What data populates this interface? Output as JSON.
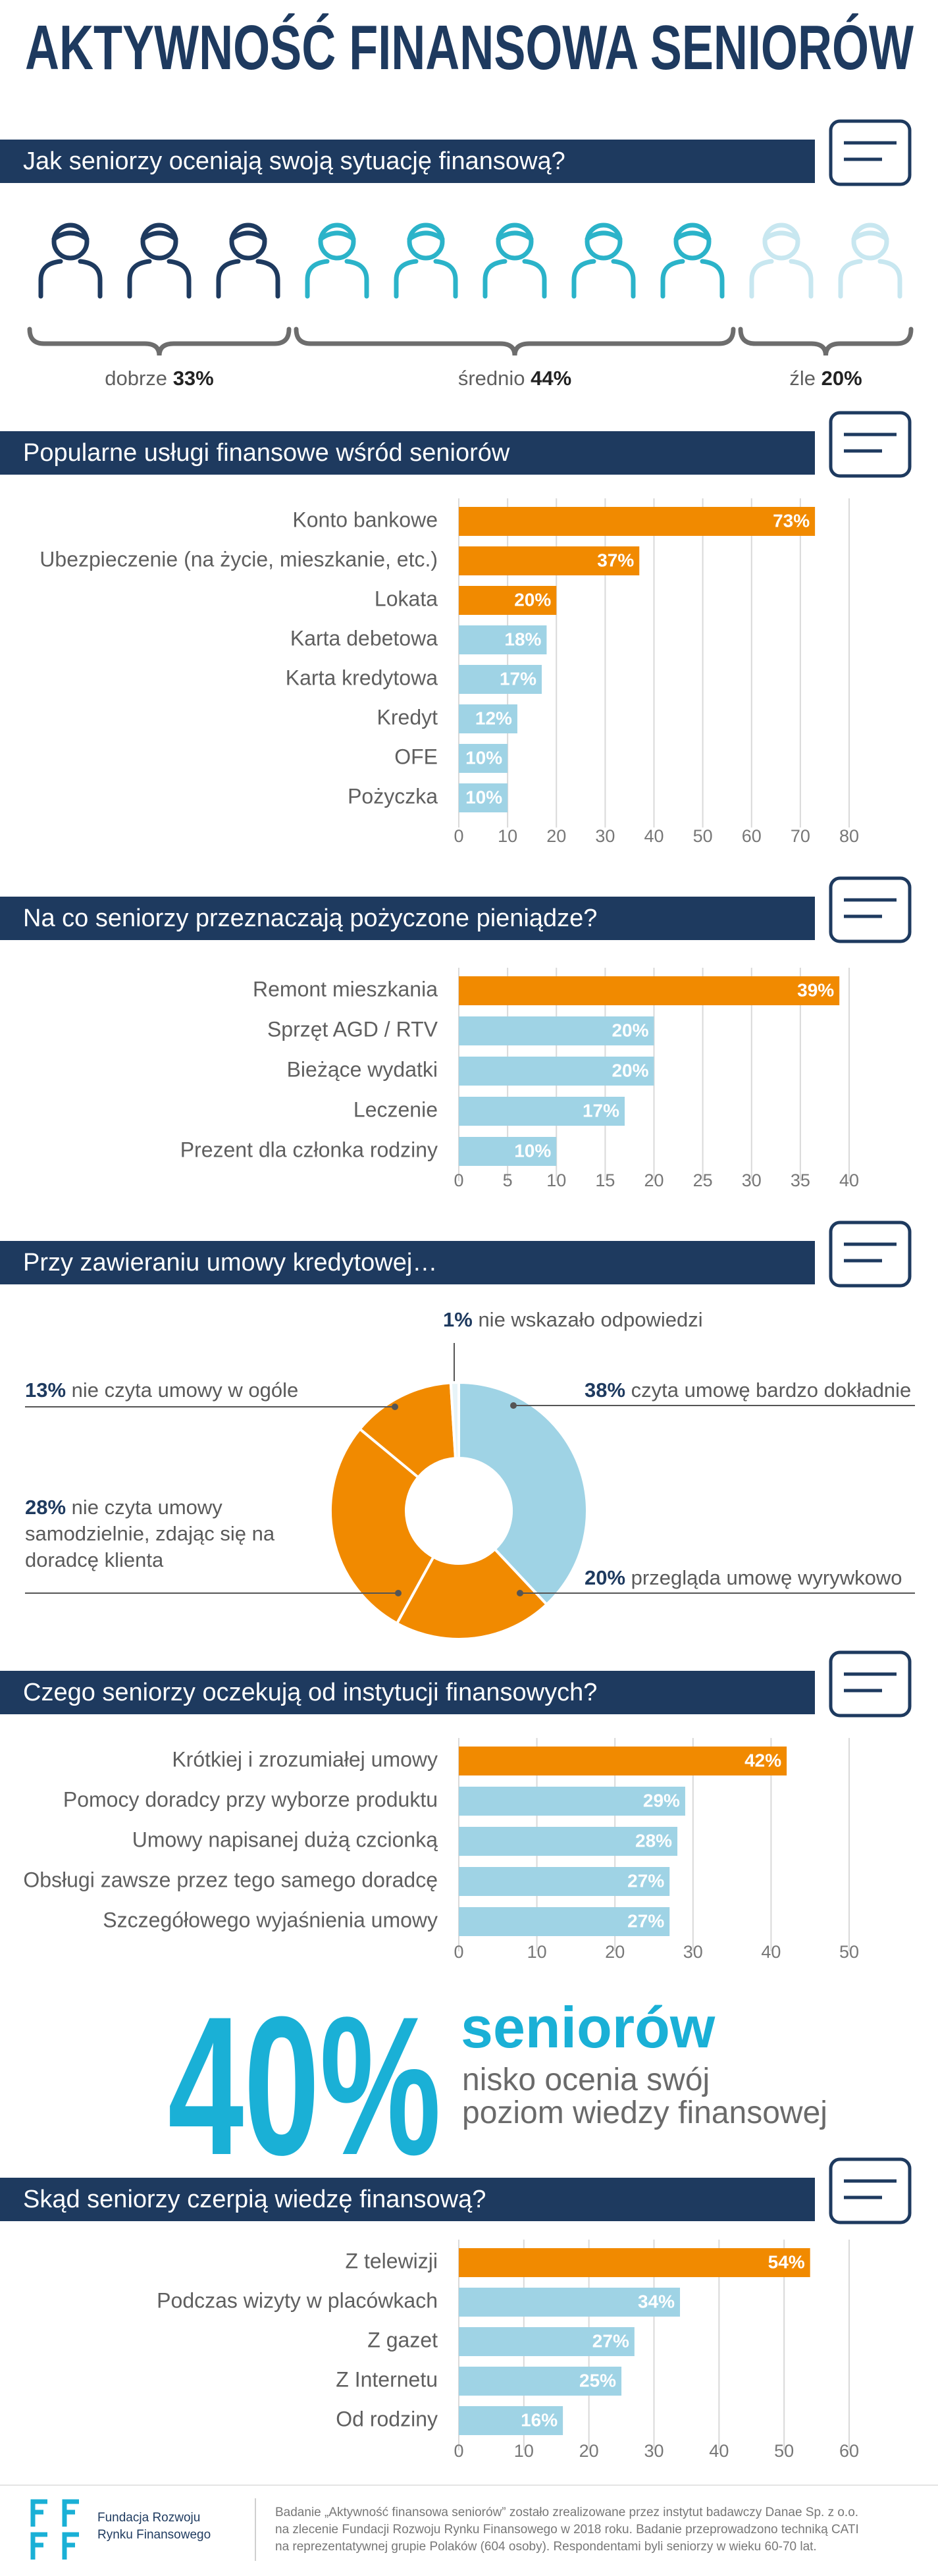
{
  "title": "AKTYWNOŚĆ FINANSOWA SENIORÓW",
  "chart_data": [
    {
      "type": "pictogram",
      "title": "Jak seniorzy oceniają swoją sytuację finansową?",
      "categories": [
        "dobrze",
        "średnio",
        "źle"
      ],
      "values": [
        33,
        44,
        20
      ],
      "value_labels": [
        "33%",
        "44%",
        "20%"
      ],
      "colors": [
        "#1e3a5f",
        "#2bb3c9",
        "#c8e7f0"
      ]
    },
    {
      "type": "hbar",
      "title": "Popularne usługi finansowe wśród seniorów",
      "categories": [
        "Konto bankowe",
        "Ubezpieczenie (na życie, mieszkanie, etc.)",
        "Lokata",
        "Karta debetowa",
        "Karta kredytowa",
        "Kredyt",
        "OFE",
        "Pożyczka"
      ],
      "values": [
        73,
        37,
        20,
        18,
        17,
        12,
        10,
        10
      ],
      "value_labels": [
        "73%",
        "37%",
        "20%",
        "18%",
        "17%",
        "12%",
        "10%",
        "10%"
      ],
      "colors": [
        "#f18a00",
        "#f18a00",
        "#f18a00",
        "#9fd3e5",
        "#9fd3e5",
        "#9fd3e5",
        "#9fd3e5",
        "#9fd3e5"
      ],
      "xlim": [
        0,
        80
      ],
      "xticks": [
        0,
        10,
        20,
        30,
        40,
        50,
        60,
        70,
        80
      ],
      "grid": true
    },
    {
      "type": "hbar",
      "title": "Na co seniorzy przeznaczają pożyczone pieniądze?",
      "categories": [
        "Remont mieszkania",
        "Sprzęt AGD / RTV",
        "Bieżące wydatki",
        "Leczenie",
        "Prezent dla członka rodziny"
      ],
      "values": [
        39,
        20,
        20,
        17,
        10
      ],
      "value_labels": [
        "39%",
        "20%",
        "20%",
        "17%",
        "10%"
      ],
      "colors": [
        "#f18a00",
        "#9fd3e5",
        "#9fd3e5",
        "#9fd3e5",
        "#9fd3e5"
      ],
      "xlim": [
        0,
        40
      ],
      "xticks": [
        0,
        5,
        10,
        15,
        20,
        25,
        30,
        35,
        40
      ],
      "grid": true
    },
    {
      "type": "donut",
      "title": "Przy zawieraniu umowy kredytowej…",
      "categories": [
        "czyta umowę bardzo dokładnie",
        "przegląda umowę wyrywkowo",
        "nie czyta umowy samodzielnie, zdając się na doradcę klienta",
        "nie czyta umowy w ogóle",
        "nie wskazało odpowiedzi"
      ],
      "values": [
        38,
        20,
        28,
        13,
        1
      ],
      "value_labels": [
        "38%",
        "20%",
        "28%",
        "13%",
        "1%"
      ],
      "colors": [
        "#9fd3e5",
        "#f18a00",
        "#f18a00",
        "#f18a00",
        "#e8f4f8"
      ]
    },
    {
      "type": "hbar",
      "title": "Czego seniorzy oczekują od instytucji finansowych?",
      "categories": [
        "Krótkiej i zrozumiałej umowy",
        "Pomocy doradcy przy wyborze produktu",
        "Umowy napisanej dużą czcionką",
        "Obsługi zawsze przez tego samego doradcę",
        "Szczegółowego wyjaśnienia umowy"
      ],
      "values": [
        42,
        29,
        28,
        27,
        27
      ],
      "value_labels": [
        "42%",
        "29%",
        "28%",
        "27%",
        "27%"
      ],
      "colors": [
        "#f18a00",
        "#9fd3e5",
        "#9fd3e5",
        "#9fd3e5",
        "#9fd3e5"
      ],
      "xlim": [
        0,
        50
      ],
      "xticks": [
        0,
        10,
        20,
        30,
        40,
        50
      ],
      "grid": true
    },
    {
      "type": "hbar",
      "title": "Skąd seniorzy czerpią wiedzę finansową?",
      "categories": [
        "Z telewizji",
        "Podczas wizyty w placówkach",
        "Z gazet",
        "Z Internetu",
        "Od rodziny"
      ],
      "values": [
        54,
        34,
        27,
        25,
        16
      ],
      "value_labels": [
        "54%",
        "34%",
        "27%",
        "25%",
        "16%"
      ],
      "colors": [
        "#f18a00",
        "#9fd3e5",
        "#9fd3e5",
        "#9fd3e5",
        "#9fd3e5"
      ],
      "xlim": [
        0,
        60
      ],
      "xticks": [
        0,
        10,
        20,
        30,
        40,
        50,
        60
      ],
      "grid": true
    }
  ],
  "stat": {
    "value": "40%",
    "title": "seniorów",
    "lines": [
      "nisko ocenia swój",
      "poziom wiedzy finansowej"
    ]
  },
  "footer": {
    "org": [
      "Fundacja Rozwoju",
      "Rynku Finansowego"
    ],
    "note": [
      "Badanie „Aktywność finansowa seniorów” zostało zrealizowane przez instytut badawczy Danae Sp. z o.o.",
      "na zlecenie Fundacji Rozwoju Rynku Finansowego w 2018 roku. Badanie przeprowadzono techniką CATI",
      "na reprezentatywnej grupie Polaków (604 osoby). Respondentami byli seniorzy w wieku 60-70 lat."
    ]
  }
}
